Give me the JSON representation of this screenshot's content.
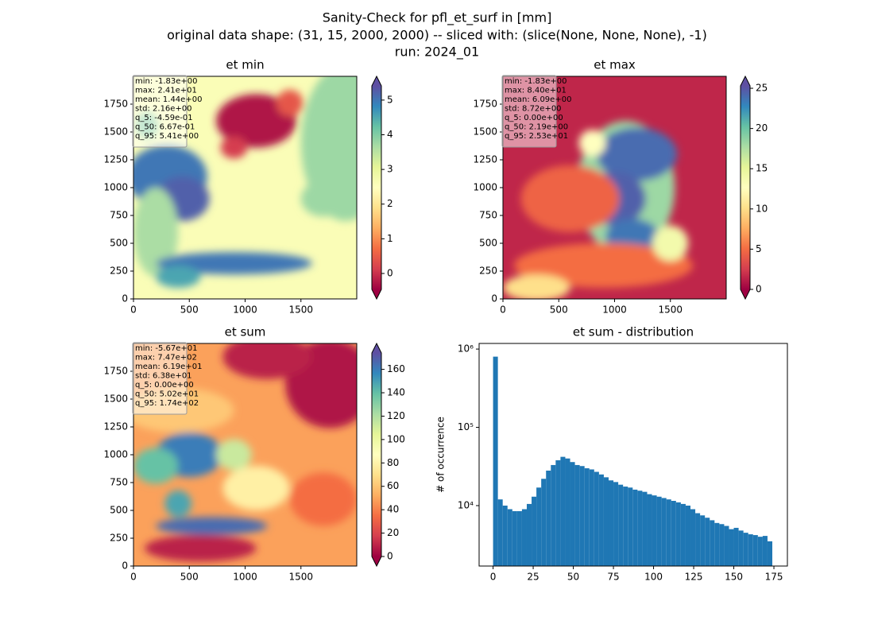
{
  "suptitle": [
    "Sanity-Check for pfl_et_surf in [mm]",
    "original data shape: (31, 15, 2000, 2000) -- sliced with: (slice(None, None, None), -1)",
    "run: 2024_01"
  ],
  "chart_data": [
    {
      "type": "heatmap",
      "title": "et min",
      "stats": [
        "min: -1.83e+00",
        "max: 2.41e+01",
        "mean: 1.44e+00",
        "std: 2.16e+00",
        "q_5: -4.59e-01",
        "q_50: 6.67e-01",
        "q_95: 5.41e+00"
      ],
      "xlim": [
        0,
        2000
      ],
      "ylim": [
        0,
        2000
      ],
      "xticks": [
        0,
        500,
        1000,
        1500
      ],
      "yticks": [
        0,
        250,
        500,
        750,
        1000,
        1250,
        1500,
        1750
      ],
      "clim": [
        -0.459,
        5.41
      ],
      "cticks": [
        0,
        1,
        2,
        3,
        4,
        5
      ],
      "extend": "both",
      "colormap": [
        "#9e0142",
        "#d53e4f",
        "#f46d43",
        "#fdae61",
        "#fee08b",
        "#ffffbf",
        "#e6f598",
        "#abdda4",
        "#66c2a5",
        "#3288bd",
        "#5e4fa2"
      ]
    },
    {
      "type": "heatmap",
      "title": "et max",
      "stats": [
        "min: -1.83e+00",
        "max: 8.40e+01",
        "mean: 6.09e+00",
        "std: 8.72e+00",
        "q_5: 0.00e+00",
        "q_50: 2.19e+00",
        "q_95: 2.53e+01"
      ],
      "xlim": [
        0,
        2000
      ],
      "ylim": [
        0,
        2000
      ],
      "xticks": [
        0,
        500,
        1000,
        1500
      ],
      "yticks": [
        0,
        250,
        500,
        750,
        1000,
        1250,
        1500,
        1750
      ],
      "clim": [
        0,
        25.3
      ],
      "cticks": [
        0,
        5,
        10,
        15,
        20,
        25
      ],
      "extend": "both",
      "colormap": [
        "#9e0142",
        "#d53e4f",
        "#f46d43",
        "#fdae61",
        "#fee08b",
        "#ffffbf",
        "#e6f598",
        "#abdda4",
        "#66c2a5",
        "#3288bd",
        "#5e4fa2"
      ]
    },
    {
      "type": "heatmap",
      "title": "et sum",
      "stats": [
        "min: -5.67e+01",
        "max: 7.47e+02",
        "mean: 6.19e+01",
        "std: 6.38e+01",
        "q_5: 0.00e+00",
        "q_50: 5.02e+01",
        "q_95: 1.74e+02"
      ],
      "xlim": [
        0,
        2000
      ],
      "ylim": [
        0,
        2000
      ],
      "xticks": [
        0,
        500,
        1000,
        1500
      ],
      "yticks": [
        0,
        250,
        500,
        750,
        1000,
        1250,
        1500,
        1750
      ],
      "clim": [
        0,
        174
      ],
      "cticks": [
        0,
        20,
        40,
        60,
        80,
        100,
        120,
        140,
        160
      ],
      "extend": "both",
      "colormap": [
        "#9e0142",
        "#d53e4f",
        "#f46d43",
        "#fdae61",
        "#fee08b",
        "#ffffbf",
        "#e6f598",
        "#abdda4",
        "#66c2a5",
        "#3288bd",
        "#5e4fa2"
      ]
    },
    {
      "type": "histogram",
      "title": "et sum - distribution",
      "ylabel": "# of occurrence",
      "color": "#1f77b4",
      "log_y": true,
      "bins": [
        0,
        3,
        6,
        9,
        12,
        15,
        18,
        21,
        24,
        27,
        30,
        33,
        36,
        39,
        42,
        45,
        48,
        51,
        54,
        57,
        60,
        63,
        66,
        69,
        72,
        75,
        78,
        81,
        84,
        87,
        90,
        93,
        96,
        99,
        102,
        105,
        108,
        111,
        114,
        117,
        120,
        123,
        126,
        129,
        132,
        135,
        138,
        141,
        144,
        147,
        150,
        153,
        156,
        159,
        162,
        165,
        168,
        171,
        174
      ],
      "counts": [
        800000,
        12000,
        10000,
        9000,
        8500,
        8500,
        9000,
        10500,
        13000,
        17000,
        22000,
        28000,
        33000,
        38000,
        42000,
        40000,
        36000,
        33000,
        32000,
        30000,
        29000,
        27000,
        25000,
        23000,
        21000,
        20000,
        18500,
        17500,
        17000,
        16000,
        15500,
        15000,
        14000,
        13500,
        13000,
        12500,
        12000,
        11500,
        11000,
        10500,
        10000,
        9000,
        8000,
        7500,
        7000,
        6500,
        6000,
        5800,
        5500,
        5000,
        5200,
        4800,
        4500,
        4300,
        4200,
        4000,
        4100,
        3500
      ],
      "xlim": [
        -8.7,
        183.4
      ],
      "ylim": [
        1690,
        1180000
      ],
      "xticks": [
        0,
        25,
        50,
        75,
        100,
        125,
        150,
        175
      ],
      "yticks": [
        {
          "value": 10000,
          "label": "10⁴"
        },
        {
          "value": 100000,
          "label": "10⁵"
        },
        {
          "value": 1000000,
          "label": "10⁶"
        }
      ]
    }
  ]
}
